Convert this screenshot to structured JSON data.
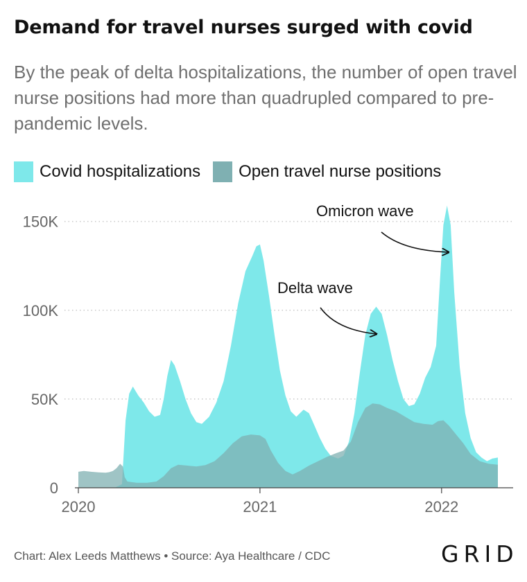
{
  "title": "Demand for travel nurses surged with covid",
  "subtitle": "By the peak of delta hospitalizations, the number of open travel nurse positions had more than quadrupled compared to pre-pandemic levels.",
  "legend": {
    "items": [
      {
        "label": "Covid hospitalizations",
        "color": "#7ee8ea"
      },
      {
        "label": "Open travel nurse positions",
        "color": "#7fb0b2"
      }
    ]
  },
  "footer": {
    "credit": "Chart: Alex Leeds Matthews • Source: Aya Healthcare / CDC",
    "logo": "GRID"
  },
  "chart_data": {
    "type": "area",
    "title": "Demand for travel nurses surged with covid",
    "subtitle": "By the peak of delta hospitalizations, the number of open travel nurse positions had more than quadrupled compared to pre-pandemic levels.",
    "xlabel": "",
    "ylabel": "",
    "ylim": [
      0,
      160000
    ],
    "xlim": [
      2020.0,
      2022.35
    ],
    "grid": true,
    "legend_position": "top-left",
    "y_ticks": [
      {
        "value": 0,
        "label": "0"
      },
      {
        "value": 50000,
        "label": "50K"
      },
      {
        "value": 100000,
        "label": "100K"
      },
      {
        "value": 150000,
        "label": "150K"
      }
    ],
    "x_ticks": [
      {
        "value": 2020,
        "label": "2020"
      },
      {
        "value": 2021,
        "label": "2021"
      },
      {
        "value": 2022,
        "label": "2022"
      }
    ],
    "series": [
      {
        "name": "Covid hospitalizations",
        "color": "#7ee8ea",
        "points": [
          [
            2020.2,
            0
          ],
          [
            2020.24,
            2000
          ],
          [
            2020.26,
            38000
          ],
          [
            2020.28,
            53000
          ],
          [
            2020.3,
            57000
          ],
          [
            2020.33,
            52000
          ],
          [
            2020.36,
            48000
          ],
          [
            2020.39,
            43000
          ],
          [
            2020.42,
            40000
          ],
          [
            2020.45,
            41000
          ],
          [
            2020.47,
            50000
          ],
          [
            2020.49,
            63000
          ],
          [
            2020.51,
            72000
          ],
          [
            2020.53,
            69000
          ],
          [
            2020.56,
            60000
          ],
          [
            2020.59,
            50000
          ],
          [
            2020.62,
            42000
          ],
          [
            2020.65,
            37000
          ],
          [
            2020.68,
            36000
          ],
          [
            2020.72,
            40000
          ],
          [
            2020.76,
            48000
          ],
          [
            2020.8,
            60000
          ],
          [
            2020.84,
            80000
          ],
          [
            2020.88,
            104000
          ],
          [
            2020.92,
            122000
          ],
          [
            2020.96,
            131000
          ],
          [
            2020.98,
            136000
          ],
          [
            2021.0,
            137000
          ],
          [
            2021.02,
            128000
          ],
          [
            2021.05,
            108000
          ],
          [
            2021.08,
            86000
          ],
          [
            2021.11,
            66000
          ],
          [
            2021.14,
            52000
          ],
          [
            2021.17,
            43000
          ],
          [
            2021.2,
            40000
          ],
          [
            2021.24,
            44000
          ],
          [
            2021.27,
            42000
          ],
          [
            2021.3,
            35000
          ],
          [
            2021.33,
            28000
          ],
          [
            2021.36,
            22000
          ],
          [
            2021.39,
            18000
          ],
          [
            2021.43,
            16500
          ],
          [
            2021.46,
            18000
          ],
          [
            2021.49,
            26000
          ],
          [
            2021.52,
            42000
          ],
          [
            2021.55,
            65000
          ],
          [
            2021.58,
            86000
          ],
          [
            2021.61,
            98000
          ],
          [
            2021.64,
            102000
          ],
          [
            2021.67,
            98000
          ],
          [
            2021.7,
            86000
          ],
          [
            2021.73,
            72000
          ],
          [
            2021.76,
            60000
          ],
          [
            2021.79,
            50000
          ],
          [
            2021.82,
            46000
          ],
          [
            2021.85,
            47000
          ],
          [
            2021.88,
            53000
          ],
          [
            2021.91,
            62000
          ],
          [
            2021.94,
            68000
          ],
          [
            2021.97,
            80000
          ],
          [
            2021.99,
            115000
          ],
          [
            2022.01,
            148000
          ],
          [
            2022.03,
            159000
          ],
          [
            2022.05,
            148000
          ],
          [
            2022.07,
            110000
          ],
          [
            2022.1,
            68000
          ],
          [
            2022.13,
            42000
          ],
          [
            2022.16,
            28000
          ],
          [
            2022.19,
            20000
          ],
          [
            2022.22,
            17000
          ],
          [
            2022.25,
            15000
          ],
          [
            2022.28,
            16500
          ],
          [
            2022.31,
            17000
          ]
        ]
      },
      {
        "name": "Open travel nurse positions",
        "color": "#7fb0b2",
        "points": [
          [
            2020.0,
            9000
          ],
          [
            2020.03,
            9500
          ],
          [
            2020.07,
            9000
          ],
          [
            2020.11,
            8700
          ],
          [
            2020.15,
            8500
          ],
          [
            2020.17,
            8800
          ],
          [
            2020.19,
            9500
          ],
          [
            2020.21,
            11000
          ],
          [
            2020.23,
            13500
          ],
          [
            2020.245,
            12000
          ],
          [
            2020.255,
            6000
          ],
          [
            2020.27,
            3500
          ],
          [
            2020.32,
            2800
          ],
          [
            2020.38,
            2800
          ],
          [
            2020.43,
            3500
          ],
          [
            2020.47,
            6500
          ],
          [
            2020.51,
            11000
          ],
          [
            2020.55,
            13000
          ],
          [
            2020.6,
            12500
          ],
          [
            2020.65,
            12000
          ],
          [
            2020.7,
            12800
          ],
          [
            2020.75,
            15000
          ],
          [
            2020.8,
            19500
          ],
          [
            2020.85,
            25000
          ],
          [
            2020.9,
            29000
          ],
          [
            2020.95,
            30000
          ],
          [
            2021.0,
            29500
          ],
          [
            2021.03,
            27500
          ],
          [
            2021.06,
            21000
          ],
          [
            2021.1,
            14000
          ],
          [
            2021.14,
            9500
          ],
          [
            2021.18,
            7500
          ],
          [
            2021.22,
            9500
          ],
          [
            2021.27,
            12500
          ],
          [
            2021.32,
            15000
          ],
          [
            2021.37,
            17500
          ],
          [
            2021.42,
            19500
          ],
          [
            2021.46,
            21000
          ],
          [
            2021.5,
            26000
          ],
          [
            2021.54,
            37000
          ],
          [
            2021.58,
            45000
          ],
          [
            2021.62,
            47500
          ],
          [
            2021.66,
            47000
          ],
          [
            2021.7,
            45000
          ],
          [
            2021.75,
            43000
          ],
          [
            2021.8,
            40000
          ],
          [
            2021.85,
            37000
          ],
          [
            2021.9,
            36000
          ],
          [
            2021.95,
            35500
          ],
          [
            2021.98,
            37500
          ],
          [
            2022.01,
            38000
          ],
          [
            2022.04,
            35000
          ],
          [
            2022.08,
            30000
          ],
          [
            2022.12,
            25000
          ],
          [
            2022.16,
            19000
          ],
          [
            2022.21,
            15000
          ],
          [
            2022.26,
            13500
          ],
          [
            2022.31,
            13000
          ]
        ]
      }
    ],
    "annotations": [
      {
        "text": "Delta wave",
        "x": 2021.6,
        "y": 85000
      },
      {
        "text": "Omicron wave",
        "x": 2022.02,
        "y": 132000
      }
    ]
  }
}
